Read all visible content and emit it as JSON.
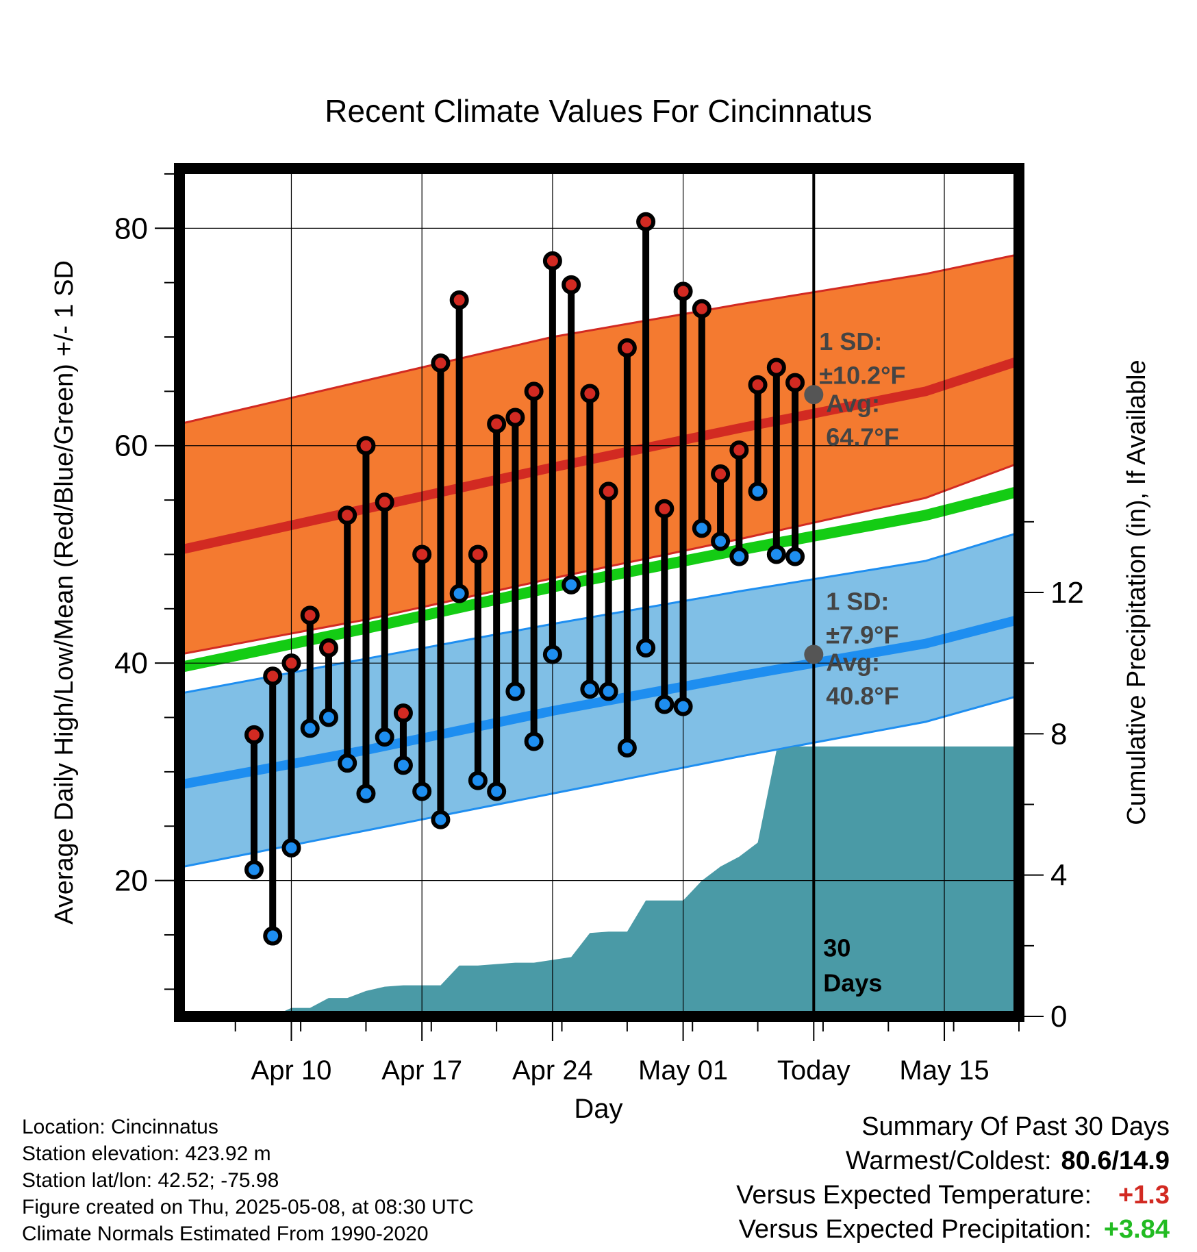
{
  "chart_data": {
    "type": "line",
    "title": "Recent Climate Values For Cincinnatus",
    "xlabel": "Day",
    "ylabel": "Average Daily High/Low/Mean (Red/Blue/Green) +/- 1 SD",
    "y2label": "Cumulative Precipitation (in), If Available",
    "x_range": [
      "2025-04-04",
      "2025-05-19"
    ],
    "ylim": [
      7.5,
      85.5
    ],
    "y_ticks": [
      20,
      40,
      60,
      80
    ],
    "y2lim": [
      0,
      24
    ],
    "y2_ticks": [
      0,
      4,
      8,
      12
    ],
    "x_ticks": [
      {
        "date": "2025-04-10",
        "label": "Apr 10"
      },
      {
        "date": "2025-04-17",
        "label": "Apr 17"
      },
      {
        "date": "2025-04-24",
        "label": "Apr 24"
      },
      {
        "date": "2025-05-01",
        "label": "May 01"
      },
      {
        "date": "2025-05-08",
        "label": "Today"
      },
      {
        "date": "2025-05-15",
        "label": "May 15"
      }
    ],
    "grid": true,
    "today": "2025-05-08",
    "today_label": "30 Days",
    "normals": {
      "dates": [
        "2025-04-04",
        "2025-04-14",
        "2025-04-24",
        "2025-05-04",
        "2025-05-14",
        "2025-05-19"
      ],
      "high_mean": [
        50.4,
        54.2,
        58.0,
        61.6,
        65.0,
        67.8
      ],
      "high_upper": [
        62.0,
        66.0,
        70.0,
        73.0,
        75.8,
        77.6
      ],
      "high_lower": [
        40.8,
        44.0,
        47.8,
        51.4,
        55.2,
        58.4
      ],
      "low_mean": [
        28.8,
        32.0,
        35.6,
        38.8,
        41.8,
        44.0
      ],
      "low_upper": [
        37.2,
        40.4,
        43.6,
        46.6,
        49.4,
        52.0
      ],
      "low_lower": [
        21.2,
        24.6,
        28.0,
        31.4,
        34.6,
        37.0
      ],
      "mean": [
        39.6,
        43.2,
        47.0,
        50.4,
        53.6,
        55.8
      ]
    },
    "daily": {
      "dates": [
        "2025-04-08",
        "2025-04-09",
        "2025-04-10",
        "2025-04-11",
        "2025-04-12",
        "2025-04-13",
        "2025-04-14",
        "2025-04-15",
        "2025-04-16",
        "2025-04-17",
        "2025-04-18",
        "2025-04-19",
        "2025-04-20",
        "2025-04-21",
        "2025-04-22",
        "2025-04-23",
        "2025-04-24",
        "2025-04-25",
        "2025-04-26",
        "2025-04-27",
        "2025-04-28",
        "2025-04-29",
        "2025-04-30",
        "2025-05-01",
        "2025-05-02",
        "2025-05-03",
        "2025-05-04",
        "2025-05-05",
        "2025-05-06",
        "2025-05-07"
      ],
      "high": [
        33.4,
        38.8,
        40.0,
        44.4,
        41.4,
        53.6,
        60.0,
        54.8,
        35.4,
        50.0,
        67.6,
        73.4,
        50.0,
        62.0,
        62.6,
        65.0,
        77.0,
        74.8,
        64.8,
        55.8,
        69.0,
        80.6,
        54.2,
        74.2,
        72.6,
        57.4,
        59.6,
        65.6,
        67.2,
        65.8
      ],
      "low": [
        21.0,
        14.9,
        23.0,
        34.0,
        35.0,
        30.8,
        28.0,
        33.2,
        30.6,
        28.2,
        25.6,
        46.4,
        29.2,
        28.2,
        37.4,
        32.8,
        40.8,
        47.2,
        37.6,
        37.4,
        32.2,
        41.4,
        36.2,
        36.0,
        52.4,
        51.2,
        49.8,
        55.8,
        50.0,
        49.8
      ]
    },
    "precip": {
      "dates": [
        "2025-04-04",
        "2025-04-09",
        "2025-04-10",
        "2025-04-11",
        "2025-04-12",
        "2025-04-13",
        "2025-04-14",
        "2025-04-15",
        "2025-04-16",
        "2025-04-17",
        "2025-04-18",
        "2025-04-19",
        "2025-04-20",
        "2025-04-21",
        "2025-04-22",
        "2025-04-23",
        "2025-04-24",
        "2025-04-25",
        "2025-04-26",
        "2025-04-27",
        "2025-04-28",
        "2025-04-29",
        "2025-04-30",
        "2025-05-01",
        "2025-05-02",
        "2025-05-03",
        "2025-05-04",
        "2025-05-05",
        "2025-05-06",
        "2025-05-07",
        "2025-05-19"
      ],
      "cumulative": [
        0,
        0,
        0.24,
        0.24,
        0.52,
        0.52,
        0.72,
        0.84,
        0.88,
        0.88,
        0.88,
        1.44,
        1.44,
        1.48,
        1.52,
        1.52,
        1.6,
        1.68,
        2.36,
        2.4,
        2.4,
        3.28,
        3.28,
        3.28,
        3.84,
        4.24,
        4.52,
        4.92,
        7.52,
        7.64,
        7.64
      ]
    },
    "annotations": {
      "high_sd": "1 SD:",
      "high_sd_value": "±10.2°F",
      "high_avg": "Avg:",
      "high_avg_value": "64.7°F",
      "low_sd": "1 SD:",
      "low_sd_value": "±7.9°F",
      "low_avg": "Avg:",
      "low_avg_value": "40.8°F",
      "high_avg_num": 64.7,
      "low_avg_num": 40.8
    },
    "colors": {
      "high_band": "#f47a30",
      "high_line": "#d22a22",
      "low_band": "#80bfe6",
      "low_line": "#1e8ef0",
      "mean_line": "#14cc14",
      "precip": "#4a9aa6",
      "high_dot": "#d22a22",
      "low_dot": "#1e8ef0",
      "marker_gray": "#555555"
    }
  },
  "info": {
    "location": "Location: Cincinnatus",
    "elevation": "Station elevation: 423.92 m",
    "latlon": "Station lat/lon: 42.52; -75.98",
    "created": "Figure created on Thu, 2025-05-08, at 08:30 UTC",
    "normals": "Climate Normals Estimated From 1990-2020"
  },
  "summary": {
    "title": "Summary Of Past 30 Days",
    "warm_label": "Warmest/Coldest:",
    "warm_value": "80.6/14.9",
    "temp_label": "Versus Expected Temperature:",
    "temp_value": "+1.3",
    "temp_color": "#d22a22",
    "precip_label": "Versus Expected Precipitation:",
    "precip_value": "+3.84",
    "precip_color": "#22bb22"
  }
}
